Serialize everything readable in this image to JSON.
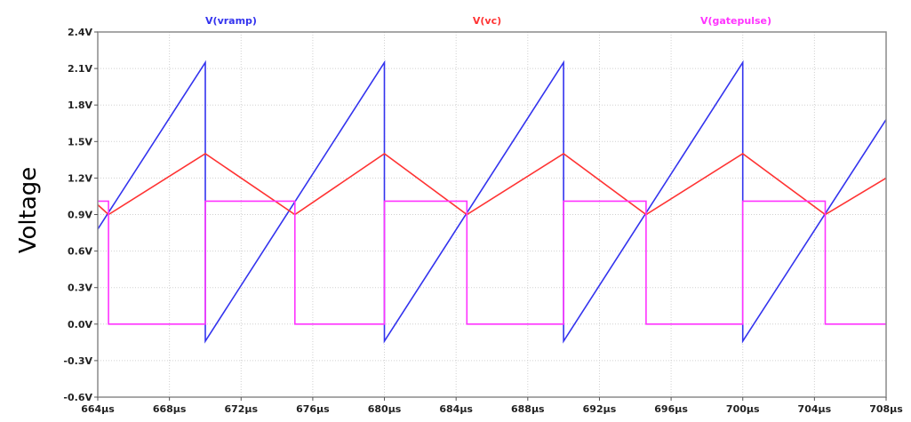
{
  "chart_data": {
    "type": "line",
    "title": "",
    "xlabel": "",
    "ylabel": "Voltage",
    "xlim": [
      664,
      708
    ],
    "ylim": [
      -0.6,
      2.4
    ],
    "x_unit": "µs",
    "grid": true,
    "legend_placement": "top",
    "x_ticks": [
      664,
      668,
      672,
      676,
      680,
      684,
      688,
      692,
      696,
      700,
      704,
      708
    ],
    "x_tick_labels": [
      "664µs",
      "668µs",
      "672µs",
      "676µs",
      "680µs",
      "684µs",
      "688µs",
      "692µs",
      "696µs",
      "700µs",
      "704µs",
      "708µs"
    ],
    "y_ticks": [
      -0.6,
      -0.3,
      0.0,
      0.3,
      0.6,
      0.9,
      1.2,
      1.5,
      1.8,
      2.1,
      2.4
    ],
    "y_tick_labels": [
      "-0.6V",
      "-0.3V",
      "0.0V",
      "0.3V",
      "0.6V",
      "0.9V",
      "1.2V",
      "1.5V",
      "1.8V",
      "2.1V",
      "2.4V"
    ],
    "series": [
      {
        "name": "V(vramp)",
        "color": "#3333ee",
        "x": [
          664,
          670,
          670,
          680,
          680,
          690,
          690,
          700,
          700,
          708
        ],
        "y": [
          0.78,
          2.15,
          -0.14,
          2.15,
          -0.14,
          2.15,
          -0.14,
          2.15,
          -0.14,
          1.68
        ]
      },
      {
        "name": "V(vc)",
        "color": "#ff3333",
        "x": [
          664,
          664.6,
          670,
          675,
          680,
          684.6,
          690,
          694.6,
          700,
          704.6,
          708
        ],
        "y": [
          0.98,
          0.9,
          1.4,
          0.9,
          1.4,
          0.9,
          1.4,
          0.9,
          1.4,
          0.9,
          1.2
        ]
      },
      {
        "name": "V(gatepulse)",
        "color": "#ff33ff",
        "x": [
          664,
          664.6,
          664.6,
          670,
          670,
          675,
          675,
          680,
          680,
          684.6,
          684.6,
          690,
          690,
          694.6,
          694.6,
          700,
          700,
          704.6,
          704.6,
          708
        ],
        "y": [
          1.01,
          1.01,
          0.0,
          0.0,
          1.01,
          1.01,
          0.0,
          0.0,
          1.01,
          1.01,
          0.0,
          0.0,
          1.01,
          1.01,
          0.0,
          0.0,
          1.01,
          1.01,
          0.0,
          0.0
        ]
      }
    ]
  }
}
